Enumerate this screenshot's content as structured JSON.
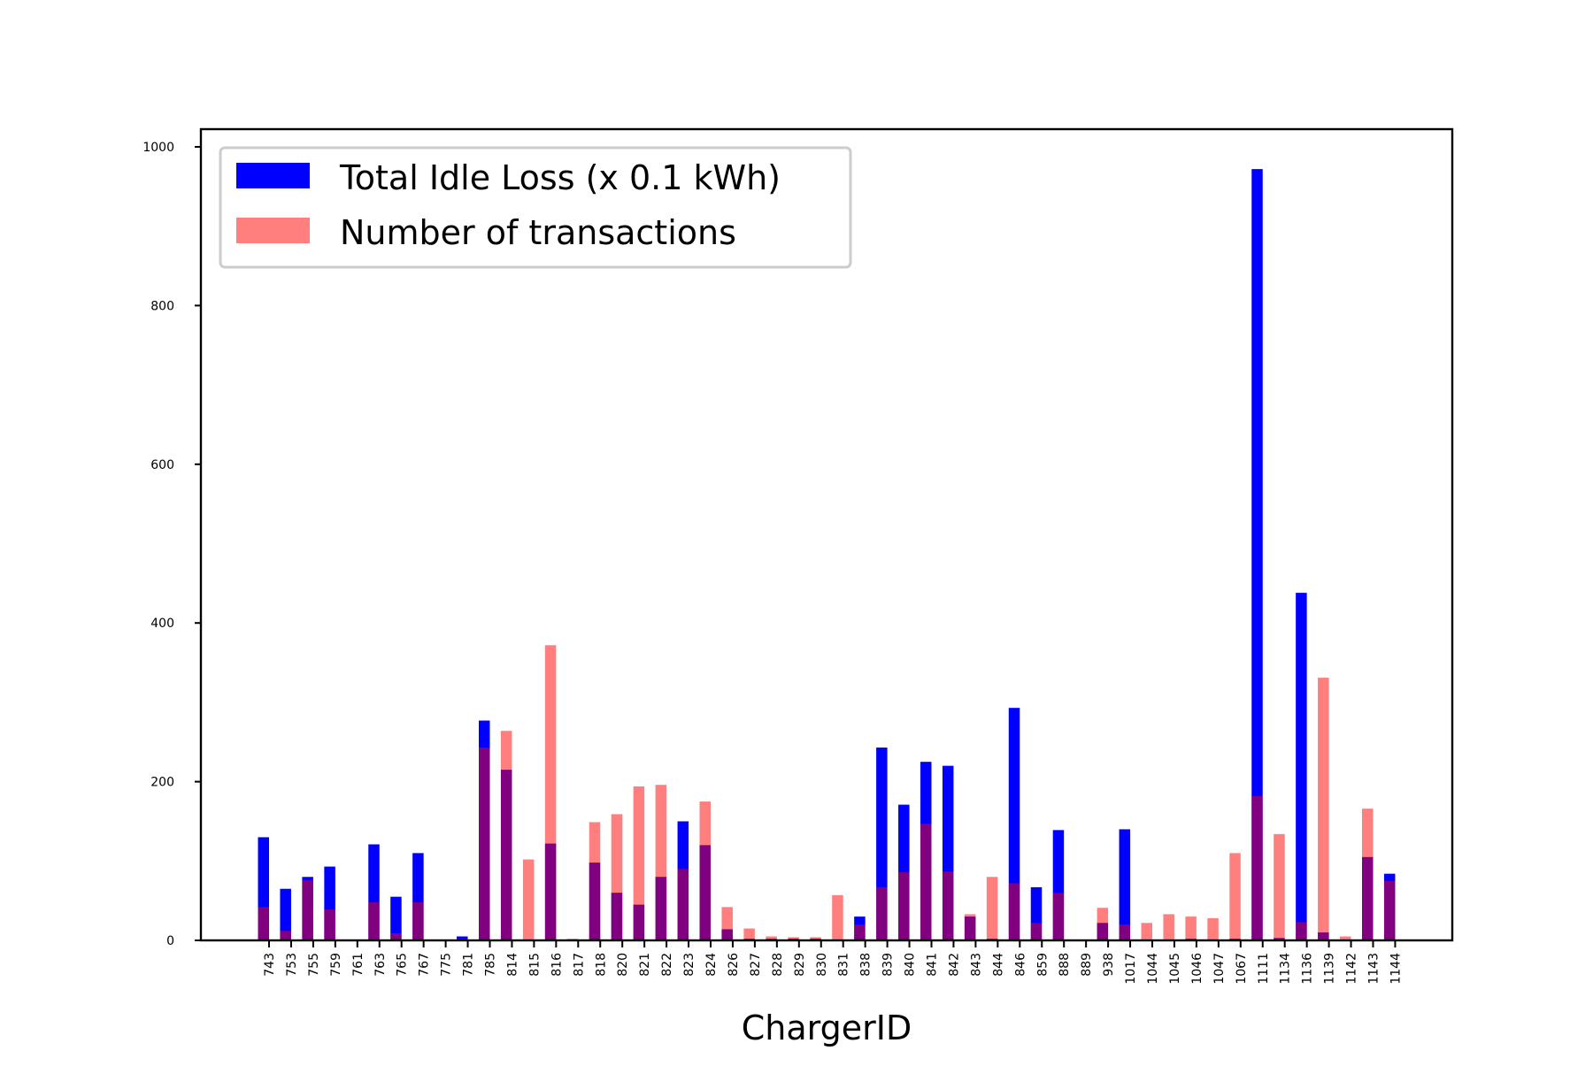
{
  "chart_data": {
    "type": "bar",
    "xlabel": "ChargerID",
    "ylabel": "",
    "ylim": [
      0,
      1000
    ],
    "yticks": [
      0,
      200,
      400,
      600,
      800,
      1000
    ],
    "legend_position": "top-left",
    "grid": false,
    "categories": [
      "743",
      "753",
      "755",
      "759",
      "761",
      "763",
      "765",
      "767",
      "775",
      "781",
      "785",
      "814",
      "815",
      "816",
      "817",
      "818",
      "820",
      "821",
      "822",
      "823",
      "824",
      "826",
      "827",
      "828",
      "829",
      "830",
      "831",
      "838",
      "839",
      "840",
      "841",
      "842",
      "843",
      "844",
      "846",
      "859",
      "888",
      "889",
      "938",
      "1017",
      "1044",
      "1045",
      "1046",
      "1047",
      "1067",
      "1111",
      "1134",
      "1136",
      "1139",
      "1142",
      "1143",
      "1144"
    ],
    "series": [
      {
        "name": "Total Idle Loss (x 0.1 kWh)",
        "color": "#0000ff",
        "opacity": 1.0,
        "values": [
          130,
          65,
          80,
          93,
          0,
          121,
          55,
          110,
          0,
          5,
          277,
          215,
          0,
          122,
          0,
          98,
          60,
          45,
          80,
          150,
          120,
          14,
          2,
          2,
          2,
          2,
          0,
          30,
          243,
          171,
          225,
          220,
          30,
          2,
          293,
          67,
          139,
          0,
          22,
          140,
          0,
          0,
          2,
          0,
          2,
          972,
          3,
          438,
          10,
          0,
          105,
          84
        ]
      },
      {
        "name": "Number of transactions",
        "color": "#ff0000",
        "opacity": 0.5,
        "values": [
          42,
          12,
          76,
          39,
          0,
          48,
          9,
          48,
          0,
          2,
          243,
          264,
          102,
          372,
          2,
          149,
          159,
          194,
          196,
          90,
          175,
          42,
          15,
          5,
          4,
          4,
          57,
          20,
          67,
          86,
          147,
          87,
          33,
          80,
          72,
          22,
          60,
          0,
          41,
          20,
          22,
          33,
          30,
          28,
          110,
          182,
          134,
          23,
          331,
          5,
          166,
          75
        ]
      }
    ]
  }
}
